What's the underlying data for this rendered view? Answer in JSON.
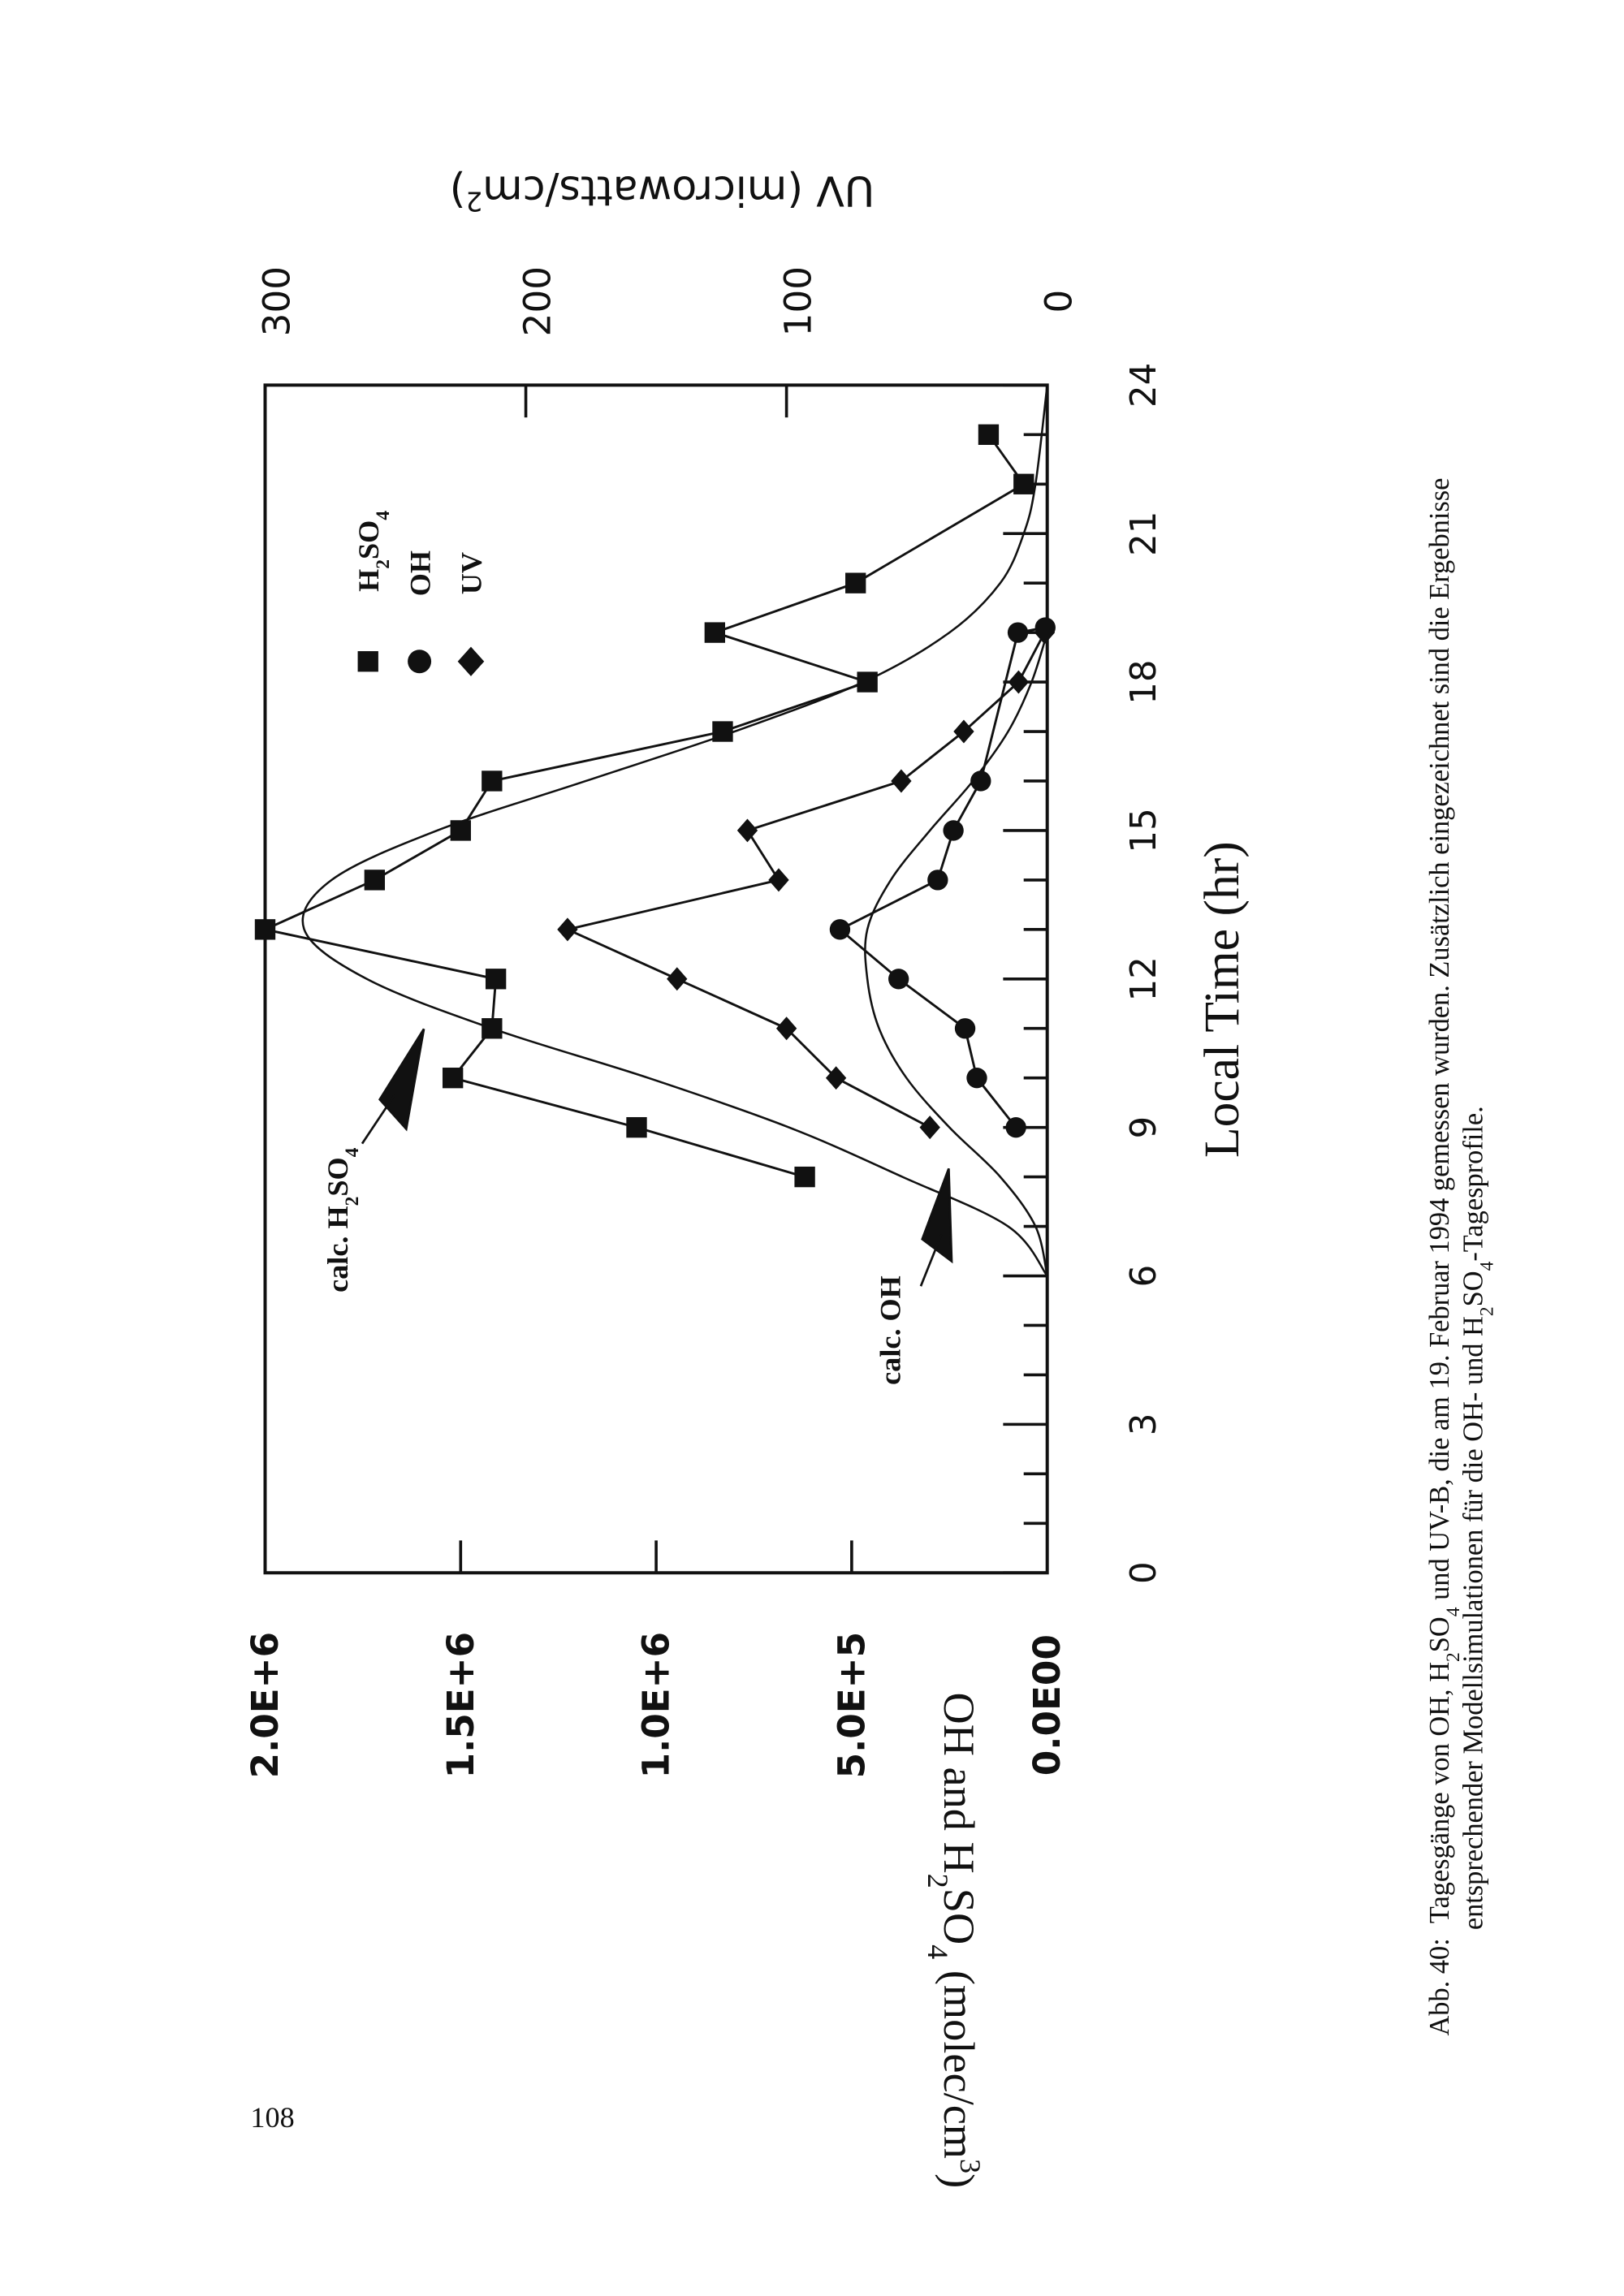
{
  "page_number": "108",
  "caption": {
    "label": "Abb. 40:",
    "line1_a": "Tagesgänge von OH, H",
    "line1_sub1": "2",
    "line1_b": "SO",
    "line1_sub2": "4",
    "line1_c": " und UV-B, die am 19. Februar 1994 gemessen wurden. Zusätzlich eingezeichnet sind die Ergebnisse",
    "line2_a": "entsprechender Modellsimulationen für die OH- und H",
    "line2_sub1": "2",
    "line2_b": "SO",
    "line2_sub2": "4",
    "line2_c": "-Tagesprofile."
  },
  "chart_data": {
    "type": "line",
    "orientation": "rotated 90 degrees counter-clockwise on page",
    "xlabel": "Local Time (hr)",
    "ylabel": {
      "a": "OH and H",
      "s1": "2",
      "b": "SO",
      "s2": "4",
      "c": " (molec/cm",
      "s3": "3",
      "d": ")"
    },
    "y2label": {
      "a": "UV (microwatts/cm",
      "s": "2",
      "b": ")"
    },
    "xlim": [
      0,
      24
    ],
    "ylim": [
      0,
      2000000
    ],
    "y2lim": [
      0,
      300
    ],
    "x_ticks": [
      "0",
      "3",
      "6",
      "9",
      "12",
      "15",
      "18",
      "21",
      "24"
    ],
    "y_ticks": [
      "0.0E00",
      "5.0E+5",
      "1.0E+6",
      "1.5E+6",
      "2.0E+6"
    ],
    "y2_ticks": [
      "0",
      "100",
      "200",
      "300"
    ],
    "legend": {
      "placement": "top-right",
      "entries": [
        {
          "marker": "square",
          "a": "H",
          "s1": "2",
          "b": "SO",
          "s2": "4"
        },
        {
          "marker": "circle",
          "a": "OH"
        },
        {
          "marker": "diamond",
          "a": "UV"
        }
      ]
    },
    "annotations": [
      {
        "a": "calc. H",
        "s1": "2",
        "b": "SO",
        "s2": "4"
      },
      {
        "a": "calc. OH"
      }
    ],
    "series": [
      {
        "name": "H2SO4",
        "marker": "square",
        "axis": "left",
        "x": [
          8,
          9,
          10,
          11,
          12,
          13,
          14,
          15,
          16,
          17,
          18,
          19,
          20,
          22,
          23
        ],
        "y": [
          620000,
          1050000,
          1520000,
          1420000,
          1410000,
          2000000,
          1720000,
          1500000,
          1420000,
          830000,
          460000,
          850000,
          490000,
          60000,
          150000
        ]
      },
      {
        "name": "OH",
        "marker": "circle",
        "axis": "left",
        "x": [
          9,
          10,
          11,
          12,
          13,
          14,
          15,
          16,
          19,
          19.1
        ],
        "y": [
          80000,
          180000,
          210000,
          380000,
          530000,
          280000,
          240000,
          170000,
          75000,
          5000
        ]
      },
      {
        "name": "UV",
        "marker": "diamond",
        "axis": "right",
        "x": [
          9,
          10,
          11,
          12,
          13,
          14,
          15,
          16,
          17,
          18,
          19
        ],
        "y": [
          45,
          81,
          100,
          142,
          184,
          103,
          115,
          56,
          32,
          11,
          1
        ]
      },
      {
        "name": "calc. H2SO4",
        "marker": "none",
        "axis": "left",
        "x": [
          6,
          7,
          8,
          9,
          10,
          11,
          12,
          13,
          14,
          15,
          16,
          17,
          18,
          19,
          20,
          21,
          22,
          24
        ],
        "y": [
          0,
          100000,
          370000,
          660000,
          1020000,
          1420000,
          1740000,
          1900000,
          1830000,
          1560000,
          1180000,
          800000,
          470000,
          250000,
          120000,
          60000,
          30000,
          0
        ]
      },
      {
        "name": "calc. OH",
        "marker": "none",
        "axis": "left",
        "x": [
          6,
          7,
          8,
          9,
          10,
          11,
          12,
          13,
          14,
          15,
          16,
          17,
          18,
          19
        ],
        "y": [
          0,
          30000,
          120000,
          250000,
          360000,
          430000,
          460000,
          460000,
          400000,
          300000,
          190000,
          100000,
          40000,
          0
        ]
      }
    ]
  }
}
